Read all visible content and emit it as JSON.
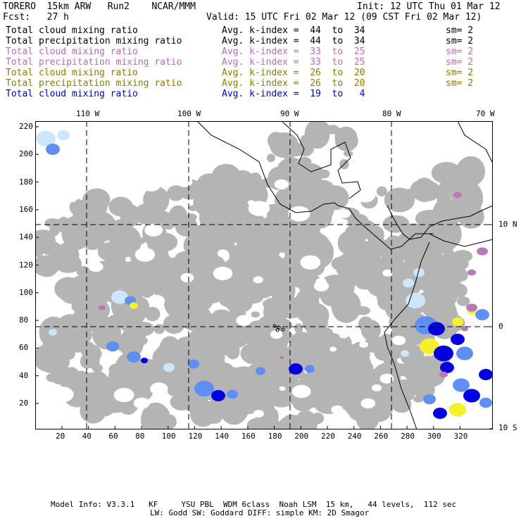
{
  "header": {
    "model": "TORERO  15km ARW   Run2    NCAR/MMM",
    "init": "Init: 12 UTC Thu 01 Mar 12",
    "fcst": "Fcst:   27 h",
    "valid": "Valid: 15 UTC Fri 02 Mar 12 (09 CST Fri 02 Mar 12)"
  },
  "legend": [
    {
      "field": "Total cloud mixing ratio",
      "avg": "Avg. k-index =  44  to  34",
      "sm": "sm= 2",
      "color": "#000000"
    },
    {
      "field": "Total precipitation mixing ratio",
      "avg": "Avg. k-index =  44  to  34",
      "sm": "sm= 2",
      "color": "#000000"
    },
    {
      "field": "Total cloud mixing ratio",
      "avg": "Avg. k-index =  33  to  25",
      "sm": "sm= 2",
      "color": "#b86bb8"
    },
    {
      "field": "Total precipitation mixing ratio",
      "avg": "Avg. k-index =  33  to  25",
      "sm": "sm= 2",
      "color": "#b86bb8"
    },
    {
      "field": "Total cloud mixing ratio",
      "avg": "Avg. k-index =  26  to  20",
      "sm": "sm= 2",
      "color": "#8c7a00"
    },
    {
      "field": "Total precipitation mixing ratio",
      "avg": "Avg. k-index =  26  to  20",
      "sm": "sm= 2",
      "color": "#8c7a00"
    },
    {
      "field": "Total cloud mixing ratio",
      "avg": "Avg. k-index =  19  to   4",
      "sm": "",
      "color": "#0000cc"
    }
  ],
  "map": {
    "lon_labels": [
      "110 W",
      "100 W",
      "90 W",
      "80 W",
      "70 W"
    ],
    "lat_labels": [
      "10 N",
      "0",
      "10 S"
    ],
    "x_ticks": [
      "20",
      "40",
      "60",
      "80",
      "100",
      "120",
      "140",
      "160",
      "180",
      "200",
      "220",
      "240",
      "260",
      "280",
      "300",
      "320"
    ],
    "y_ticks": [
      "220",
      "200",
      "180",
      "160",
      "140",
      "120",
      "100",
      "80",
      "60",
      "40",
      "20"
    ],
    "colors": {
      "cloud_gray": "#b4b4b4",
      "light_blue": "#cfe6fa",
      "mid_blue": "#5f8ff2",
      "dark_blue": "#0000e0",
      "yellow": "#f4f02a",
      "purple": "#b979b9",
      "coast": "#000000"
    }
  },
  "footer": {
    "line1": "Model Info: V3.3.1   KF     YSU PBL  WDM 6class  Noah LSM  15 km,   44 levels,  112 sec",
    "line2": "LW: Godd SW: Goddard DIFF: simple KM: 2D Smagor"
  }
}
